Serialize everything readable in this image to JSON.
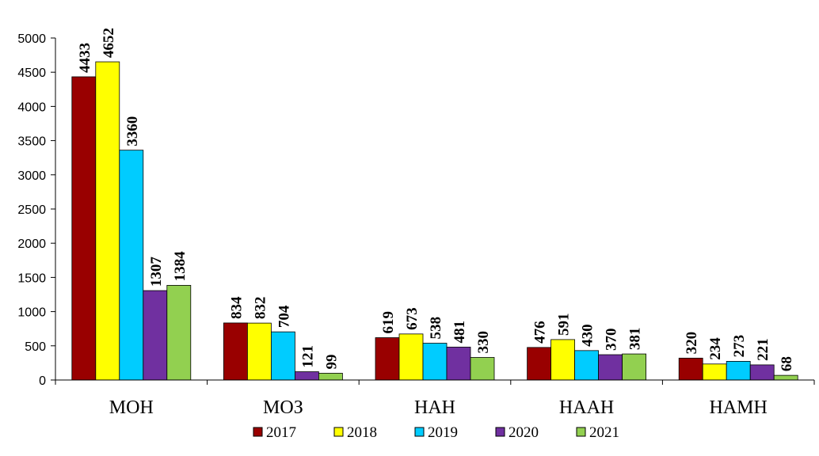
{
  "chart_data": {
    "type": "bar",
    "categories": [
      "МОН",
      "МОЗ",
      "НАН",
      "НААН",
      "НАМН"
    ],
    "series": [
      {
        "name": "2017",
        "color": "#990000",
        "values": [
          4433,
          834,
          619,
          476,
          320
        ]
      },
      {
        "name": "2018",
        "color": "#FFFF00",
        "values": [
          4652,
          832,
          673,
          591,
          234
        ]
      },
      {
        "name": "2019",
        "color": "#00CCFF",
        "values": [
          3360,
          704,
          538,
          430,
          273
        ]
      },
      {
        "name": "2020",
        "color": "#7030A0",
        "values": [
          1307,
          121,
          481,
          370,
          221
        ]
      },
      {
        "name": "2021",
        "color": "#92D050",
        "values": [
          1384,
          99,
          330,
          381,
          68
        ]
      }
    ],
    "ylim": [
      0,
      5000
    ],
    "yticks": [
      0,
      500,
      1000,
      1500,
      2000,
      2500,
      3000,
      3500,
      4000,
      4500,
      5000
    ],
    "grid": false,
    "legend_position": "bottom",
    "data_labels": true
  }
}
